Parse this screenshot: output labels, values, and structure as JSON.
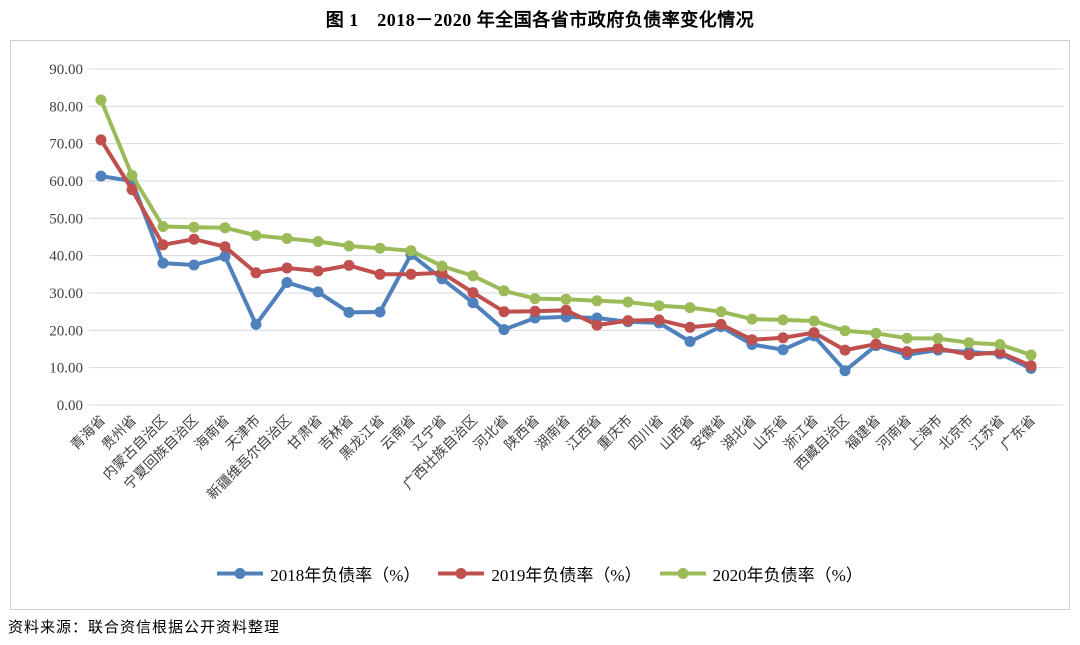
{
  "page": {
    "title": "图 1　2018－2020 年全国各省市政府负债率变化情况",
    "source_note": "资料来源：联合资信根据公开资料整理"
  },
  "chart_data": {
    "type": "line",
    "title": "图 1　2018－2020 年全国各省市政府负债率变化情况",
    "xlabel": "",
    "ylabel": "",
    "ylim": [
      0,
      90
    ],
    "ytick_step": 10,
    "ytick_decimals": 2,
    "grid": "horizontal",
    "legend_position": "bottom",
    "marker": "circle",
    "categories": [
      "青海省",
      "贵州省",
      "内蒙古自治区",
      "宁夏回族自治区",
      "海南省",
      "天津市",
      "新疆维吾尔自治区",
      "甘肃省",
      "吉林省",
      "黑龙江省",
      "云南省",
      "辽宁省",
      "广西壮族自治区",
      "河北省",
      "陕西省",
      "湖南省",
      "江西省",
      "重庆市",
      "四川省",
      "山西省",
      "安徽省",
      "湖北省",
      "山东省",
      "浙江省",
      "西藏自治区",
      "福建省",
      "河南省",
      "上海市",
      "北京市",
      "江苏省",
      "广东省"
    ],
    "series": [
      {
        "name": "2018年负债率（%）",
        "color": "#4f81bd",
        "values": [
          61.3,
          60.0,
          38.0,
          37.5,
          39.8,
          21.6,
          32.8,
          30.3,
          24.8,
          24.9,
          40.3,
          33.8,
          27.4,
          20.2,
          23.3,
          23.6,
          23.3,
          22.3,
          22.0,
          17.0,
          21.0,
          16.2,
          14.8,
          18.5,
          9.2,
          15.9,
          13.5,
          14.7,
          14.2,
          13.7,
          9.8
        ]
      },
      {
        "name": "2019年负债率（%）",
        "color": "#c0504d",
        "values": [
          71.0,
          57.7,
          42.9,
          44.4,
          42.4,
          35.4,
          36.7,
          35.9,
          37.4,
          35.0,
          35.0,
          35.4,
          30.1,
          25.0,
          25.1,
          25.4,
          21.4,
          22.6,
          22.8,
          20.8,
          21.6,
          17.5,
          18.0,
          19.4,
          14.7,
          16.3,
          14.3,
          15.2,
          13.5,
          14.1,
          10.5
        ]
      },
      {
        "name": "2020年负债率（%）",
        "color": "#9bbb59",
        "values": [
          81.7,
          61.5,
          47.8,
          47.6,
          47.5,
          45.4,
          44.6,
          43.8,
          42.6,
          42.0,
          41.3,
          37.2,
          34.6,
          30.6,
          28.5,
          28.3,
          27.9,
          27.6,
          26.6,
          26.1,
          25.0,
          23.0,
          22.8,
          22.5,
          19.9,
          19.2,
          17.9,
          17.8,
          16.7,
          16.2,
          13.4
        ]
      }
    ]
  },
  "style_colors": {
    "gridline": "#d9d9d9",
    "frame_border": "#cfcfcf",
    "tick_label": "#404040"
  }
}
